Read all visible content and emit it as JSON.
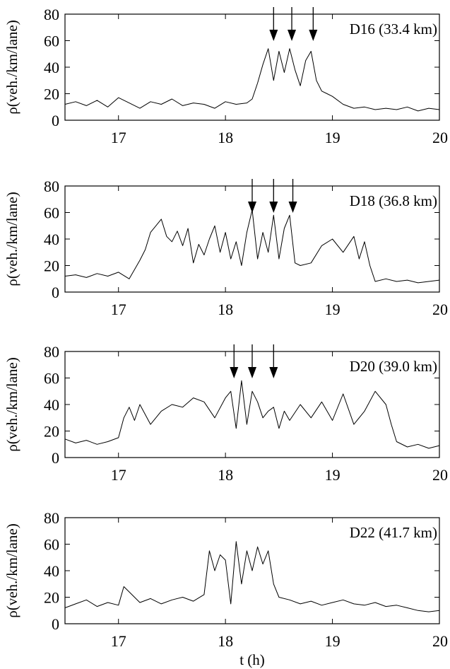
{
  "chart_data": [
    {
      "type": "line",
      "annotation": "D16 (33.4 km)",
      "ylabel": "ρ(veh./km/lane)",
      "xlim": [
        16.5,
        20
      ],
      "ylim": [
        0,
        80
      ],
      "xticks": [
        17,
        18,
        19,
        20
      ],
      "yticks": [
        0,
        20,
        40,
        60,
        80
      ],
      "arrows_x": [
        18.45,
        18.62,
        18.82
      ],
      "x": [
        16.5,
        16.6,
        16.7,
        16.8,
        16.9,
        17.0,
        17.1,
        17.2,
        17.3,
        17.4,
        17.5,
        17.6,
        17.7,
        17.8,
        17.9,
        18.0,
        18.1,
        18.2,
        18.25,
        18.3,
        18.35,
        18.4,
        18.45,
        18.5,
        18.55,
        18.6,
        18.65,
        18.7,
        18.75,
        18.8,
        18.85,
        18.9,
        18.95,
        19.0,
        19.1,
        19.2,
        19.3,
        19.4,
        19.5,
        19.6,
        19.7,
        19.8,
        19.9,
        20.0
      ],
      "values": [
        12,
        14,
        11,
        15,
        10,
        17,
        13,
        9,
        14,
        12,
        16,
        11,
        13,
        12,
        9,
        14,
        12,
        13,
        16,
        28,
        42,
        54,
        30,
        52,
        36,
        54,
        38,
        26,
        45,
        52,
        30,
        22,
        20,
        18,
        12,
        9,
        10,
        8,
        9,
        8,
        10,
        7,
        9,
        8
      ]
    },
    {
      "type": "line",
      "annotation": "D18 (36.8 km)",
      "ylabel": "ρ(veh./km/lane)",
      "xlim": [
        16.5,
        20
      ],
      "ylim": [
        0,
        80
      ],
      "xticks": [
        17,
        18,
        19,
        20
      ],
      "yticks": [
        0,
        20,
        40,
        60,
        80
      ],
      "arrows_x": [
        18.25,
        18.45,
        18.63
      ],
      "x": [
        16.5,
        16.6,
        16.7,
        16.8,
        16.9,
        17.0,
        17.1,
        17.2,
        17.25,
        17.3,
        17.35,
        17.4,
        17.45,
        17.5,
        17.55,
        17.6,
        17.65,
        17.7,
        17.75,
        17.8,
        17.85,
        17.9,
        17.95,
        18.0,
        18.05,
        18.1,
        18.15,
        18.2,
        18.25,
        18.3,
        18.35,
        18.4,
        18.45,
        18.5,
        18.55,
        18.6,
        18.65,
        18.7,
        18.8,
        18.9,
        19.0,
        19.1,
        19.2,
        19.25,
        19.3,
        19.35,
        19.4,
        19.5,
        19.6,
        19.7,
        19.8,
        19.9,
        20.0
      ],
      "values": [
        12,
        13,
        11,
        14,
        12,
        15,
        10,
        24,
        32,
        45,
        50,
        55,
        42,
        38,
        46,
        35,
        48,
        22,
        36,
        28,
        40,
        50,
        30,
        45,
        25,
        38,
        20,
        45,
        62,
        25,
        45,
        30,
        58,
        25,
        48,
        58,
        22,
        20,
        22,
        35,
        40,
        30,
        42,
        25,
        38,
        20,
        8,
        10,
        8,
        9,
        7,
        8,
        9
      ]
    },
    {
      "type": "line",
      "annotation": "D20 (39.0 km)",
      "ylabel": "ρ(veh./km/lane)",
      "xlim": [
        16.5,
        20
      ],
      "ylim": [
        0,
        80
      ],
      "xticks": [
        17,
        18,
        19,
        20
      ],
      "yticks": [
        0,
        20,
        40,
        60,
        80
      ],
      "arrows_x": [
        18.08,
        18.25,
        18.45
      ],
      "x": [
        16.5,
        16.6,
        16.7,
        16.8,
        16.9,
        17.0,
        17.05,
        17.1,
        17.15,
        17.2,
        17.3,
        17.4,
        17.5,
        17.6,
        17.7,
        17.8,
        17.9,
        18.0,
        18.05,
        18.1,
        18.15,
        18.2,
        18.25,
        18.3,
        18.35,
        18.4,
        18.45,
        18.5,
        18.55,
        18.6,
        18.7,
        18.8,
        18.9,
        19.0,
        19.1,
        19.2,
        19.3,
        19.4,
        19.5,
        19.55,
        19.6,
        19.7,
        19.8,
        19.9,
        20.0
      ],
      "values": [
        14,
        11,
        13,
        10,
        12,
        15,
        30,
        38,
        28,
        40,
        25,
        35,
        40,
        38,
        45,
        42,
        30,
        45,
        50,
        22,
        58,
        25,
        50,
        42,
        30,
        35,
        38,
        22,
        35,
        28,
        40,
        30,
        42,
        28,
        48,
        25,
        35,
        50,
        40,
        25,
        12,
        8,
        10,
        7,
        9
      ]
    },
    {
      "type": "line",
      "annotation": "D22 (41.7 km)",
      "ylabel": "ρ(veh./km/lane)",
      "xlabel": "t (h)",
      "xlim": [
        16.5,
        20
      ],
      "ylim": [
        0,
        80
      ],
      "xticks": [
        17,
        18,
        19,
        20
      ],
      "yticks": [
        0,
        20,
        40,
        60,
        80
      ],
      "arrows_x": [],
      "x": [
        16.5,
        16.6,
        16.7,
        16.8,
        16.9,
        17.0,
        17.05,
        17.1,
        17.2,
        17.3,
        17.4,
        17.5,
        17.6,
        17.7,
        17.8,
        17.85,
        17.9,
        17.95,
        18.0,
        18.05,
        18.1,
        18.15,
        18.2,
        18.25,
        18.3,
        18.35,
        18.4,
        18.45,
        18.5,
        18.6,
        18.7,
        18.8,
        18.9,
        19.0,
        19.1,
        19.2,
        19.3,
        19.4,
        19.5,
        19.6,
        19.7,
        19.8,
        19.9,
        20.0
      ],
      "values": [
        12,
        15,
        18,
        13,
        16,
        14,
        28,
        24,
        16,
        19,
        15,
        18,
        20,
        17,
        22,
        55,
        40,
        52,
        48,
        15,
        62,
        30,
        55,
        40,
        58,
        45,
        55,
        30,
        20,
        18,
        15,
        17,
        14,
        16,
        18,
        15,
        14,
        16,
        13,
        14,
        12,
        10,
        9,
        10
      ]
    }
  ]
}
